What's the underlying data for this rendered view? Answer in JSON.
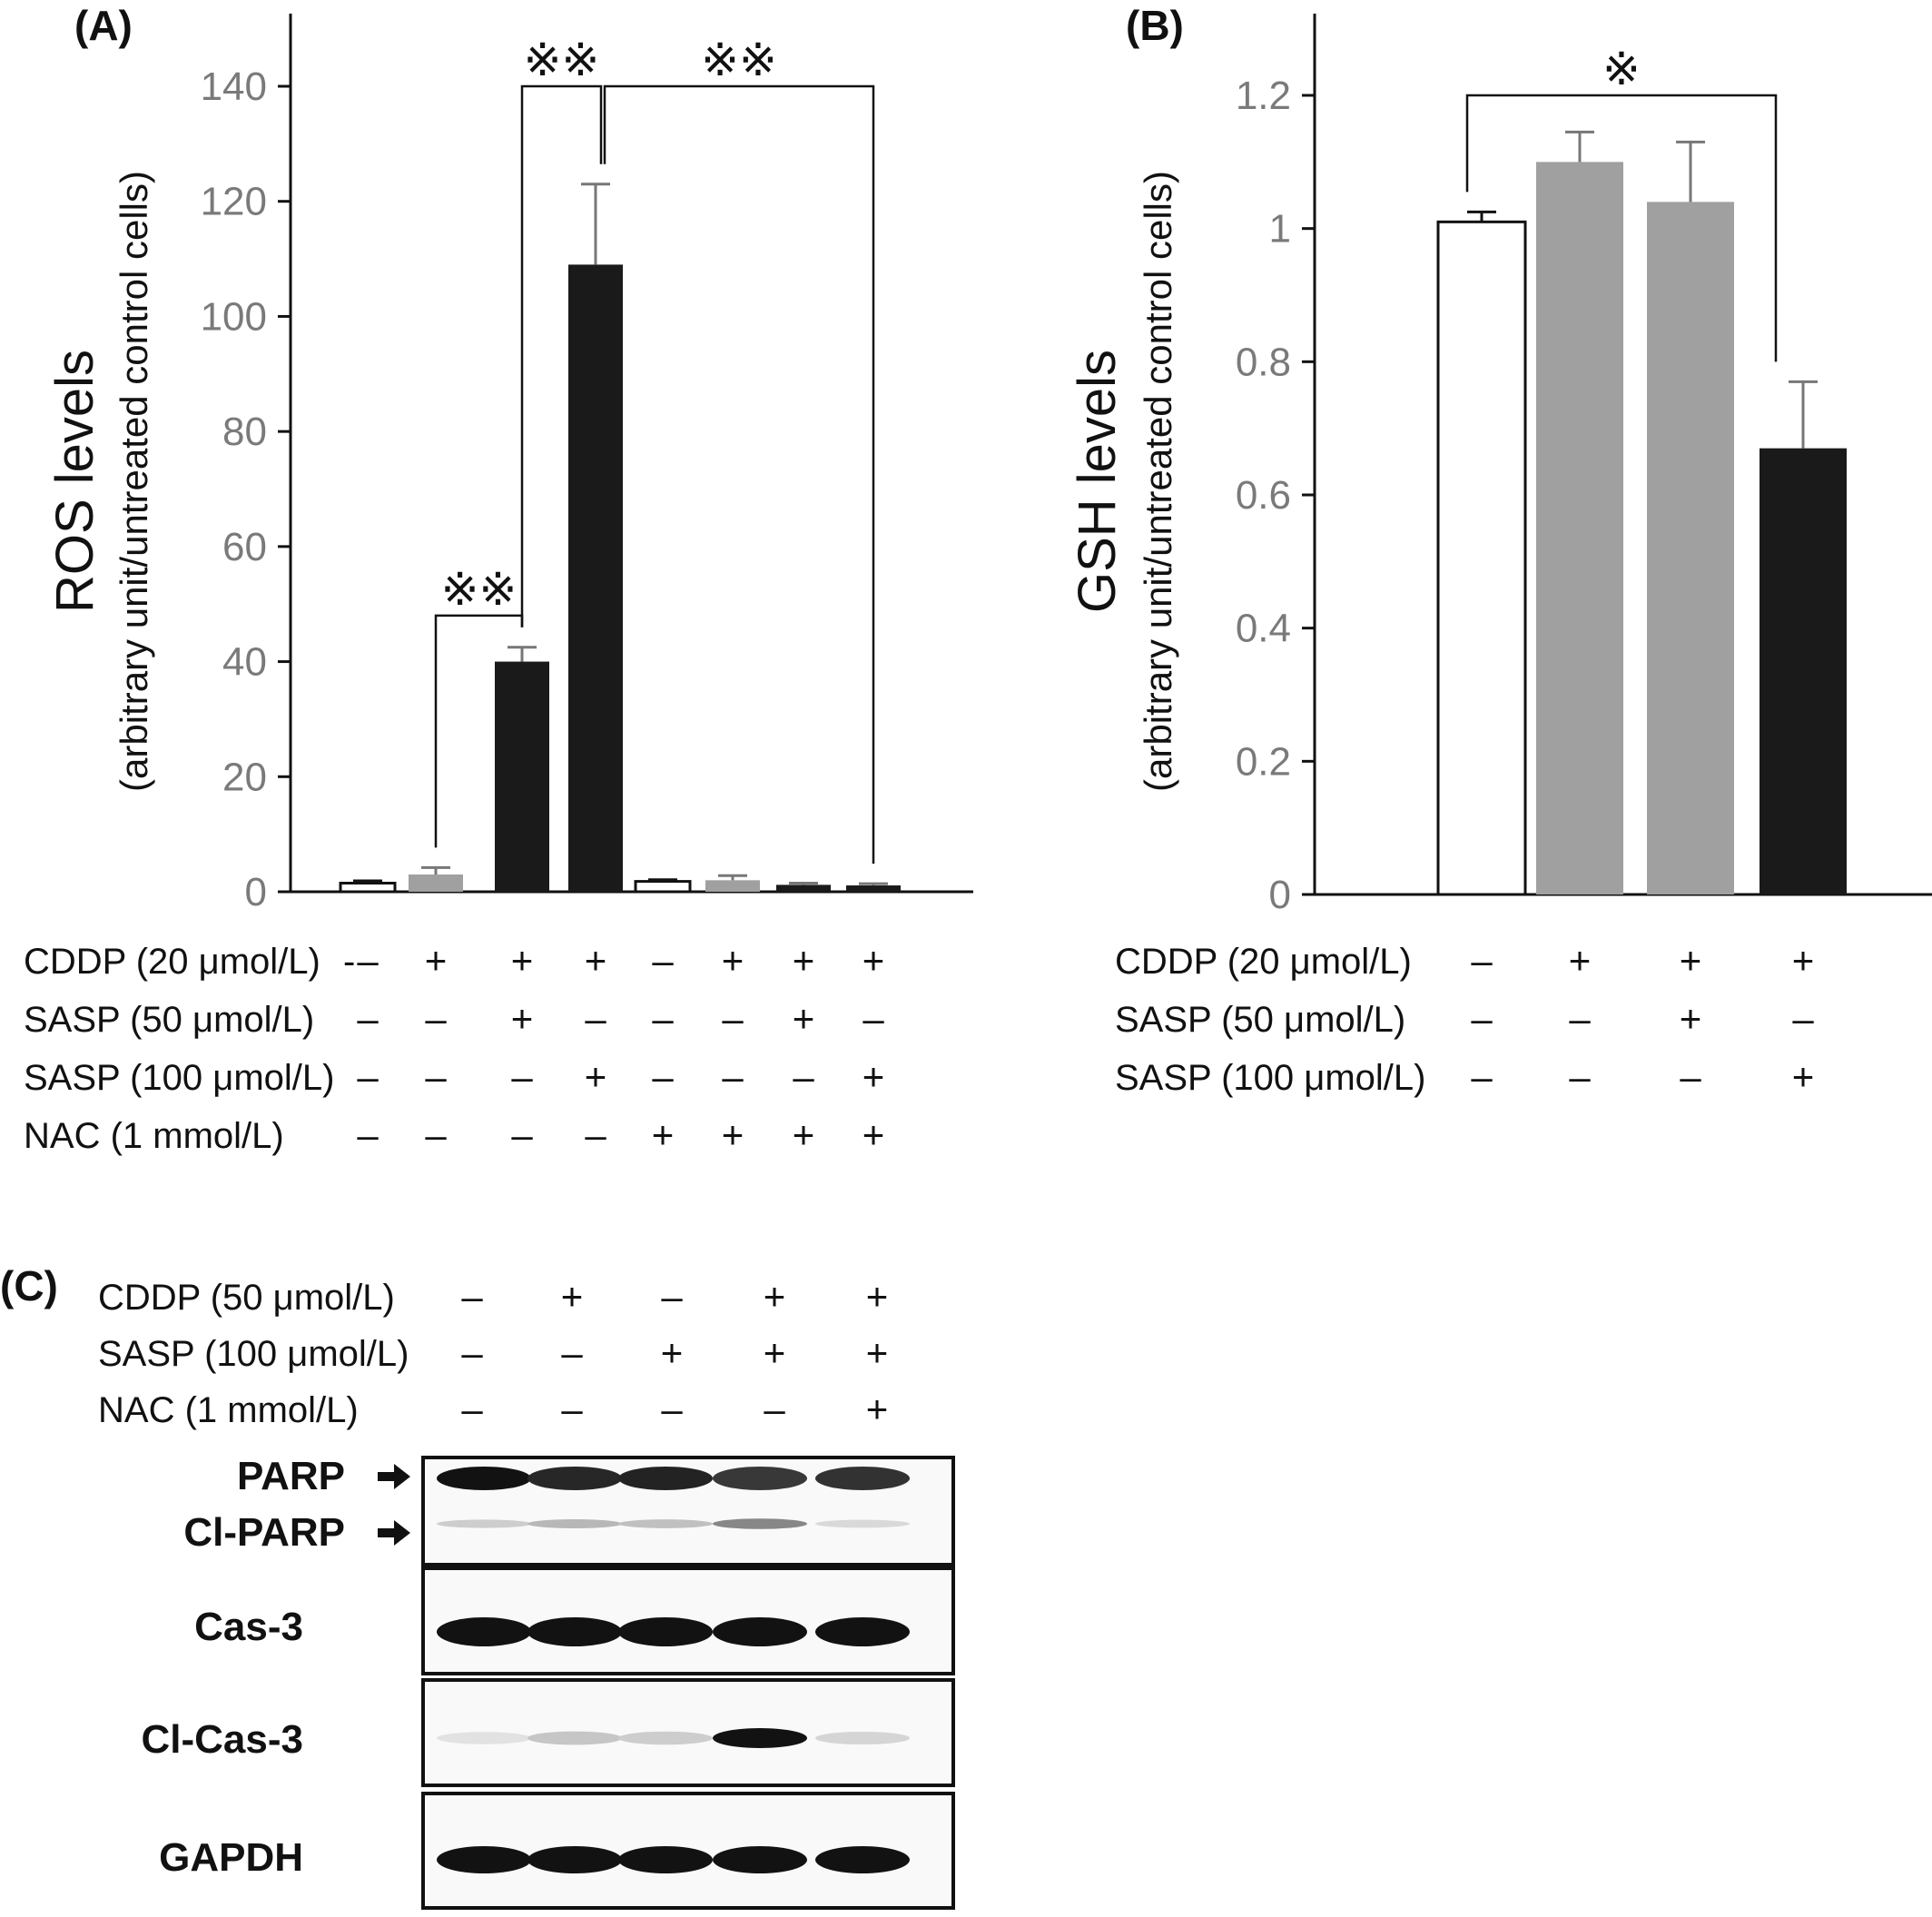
{
  "chart_data": [
    {
      "type": "bar",
      "panel": "(A)",
      "ylabel": "ROS levels",
      "ylabel_sub": "(arbitrary unit/untreated control cells)",
      "ylim": [
        0,
        140
      ],
      "yticks": [
        "0",
        "20",
        "40",
        "60",
        "80",
        "100",
        "120",
        "140"
      ],
      "values": [
        1.5,
        3,
        40,
        109,
        1.8,
        2,
        1.2,
        1.1
      ],
      "errors": [
        0.4,
        1.2,
        2.5,
        14,
        0.3,
        0.8,
        0.3,
        0.3
      ],
      "bar_colors": [
        "#ffffff",
        "#a0a0a0",
        "#1a1a1a",
        "#1a1a1a",
        "#ffffff",
        "#a0a0a0",
        "#1a1a1a",
        "#1a1a1a"
      ],
      "conditions": [
        {
          "label": "CDDP (20 μmol/L)",
          "signs": [
            "–",
            "+",
            "+",
            "+",
            "–",
            "+",
            "+",
            "+"
          ]
        },
        {
          "label": "SASP (50 μmol/L)",
          "signs": [
            "–",
            "–",
            "+",
            "–",
            "–",
            "–",
            "+",
            "–"
          ]
        },
        {
          "label": "SASP (100 μmol/L)",
          "signs": [
            "–",
            "–",
            "–",
            "+",
            "–",
            "–",
            "–",
            "+"
          ]
        },
        {
          "label": "NAC (1 mmol/L)",
          "signs": [
            "–",
            "–",
            "–",
            "–",
            "+",
            "+",
            "+",
            "+"
          ]
        }
      ],
      "significance": [
        {
          "from": 1,
          "to": 2,
          "level": 48,
          "label": "※※"
        },
        {
          "from": 2,
          "to": 3,
          "level": 140,
          "label": "※※"
        },
        {
          "from": 3,
          "to": 7,
          "level": 140,
          "label": "※※"
        }
      ],
      "stray_mark": "-"
    },
    {
      "type": "bar",
      "panel": "(B)",
      "ylabel": "GSH levels",
      "ylabel_sub": "(arbitrary unit/untreated control cells)",
      "ylim": [
        0,
        1.2
      ],
      "yticks": [
        "0",
        "0.2",
        "0.4",
        "0.6",
        "0.8",
        "1",
        "1.2"
      ],
      "values": [
        1.01,
        1.1,
        1.04,
        0.67
      ],
      "errors": [
        0.015,
        0.045,
        0.09,
        0.1
      ],
      "bar_colors": [
        "#ffffff",
        "#a0a0a0",
        "#a0a0a0",
        "#1a1a1a"
      ],
      "conditions": [
        {
          "label": "CDDP (20 μmol/L)",
          "signs": [
            "–",
            "+",
            "+",
            "+"
          ]
        },
        {
          "label": "SASP (50 μmol/L)",
          "signs": [
            "–",
            "–",
            "+",
            "–"
          ]
        },
        {
          "label": "SASP (100 μmol/L)",
          "signs": [
            "–",
            "–",
            "–",
            "+"
          ]
        }
      ],
      "significance": [
        {
          "from": 0,
          "to": 3,
          "level": 1.2,
          "label": "※"
        }
      ]
    }
  ],
  "blot": {
    "panel": "(C)",
    "conditions": [
      {
        "label": "CDDP (50 μmol/L)",
        "signs": [
          "–",
          "+",
          "–",
          "+",
          "+"
        ]
      },
      {
        "label": "SASP (100 μmol/L)",
        "signs": [
          "–",
          "–",
          "+",
          "+",
          "+"
        ]
      },
      {
        "label": "NAC (1 mmol/L)",
        "signs": [
          "–",
          "–",
          "–",
          "–",
          "+"
        ]
      }
    ],
    "bands": [
      {
        "label": "PARP",
        "arrow": true
      },
      {
        "label": "Cl-PARP",
        "arrow": true
      },
      {
        "label": "Cas-3",
        "arrow": false
      },
      {
        "label": "Cl-Cas-3",
        "arrow": false
      },
      {
        "label": "GAPDH",
        "arrow": false
      }
    ],
    "intensity": {
      "PARP": [
        1,
        0.9,
        0.92,
        0.82,
        0.85
      ],
      "Cl-PARP": [
        0.12,
        0.22,
        0.18,
        0.45,
        0.06
      ],
      "Cas-3": [
        1,
        1,
        1,
        1,
        1
      ],
      "Cl-Cas-3": [
        0.02,
        0.15,
        0.12,
        1,
        0.08
      ],
      "GAPDH": [
        1,
        1,
        1,
        1,
        1
      ]
    }
  }
}
